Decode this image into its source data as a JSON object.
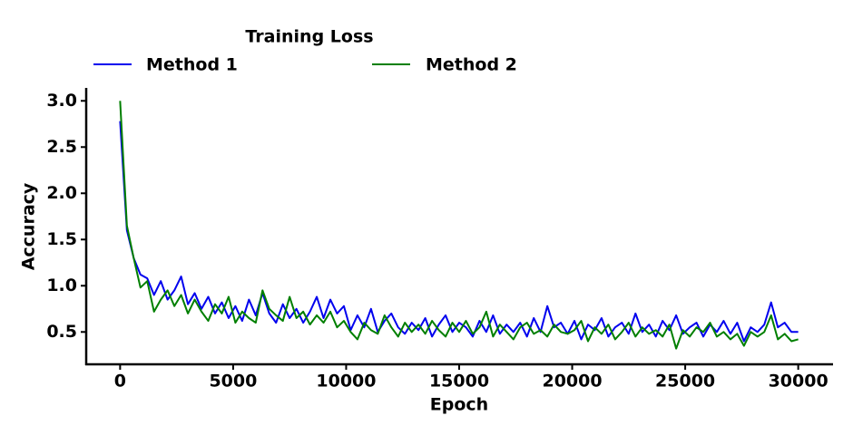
{
  "chart_data": {
    "type": "line",
    "legend_title": "Training Loss",
    "x_label": "Epoch",
    "y_label": "Accuracy",
    "x": [
      0,
      300,
      600,
      900,
      1200,
      1500,
      1800,
      2100,
      2400,
      2700,
      3000,
      3300,
      3600,
      3900,
      4200,
      4500,
      4800,
      5100,
      5400,
      5700,
      6000,
      6300,
      6600,
      6900,
      7200,
      7500,
      7800,
      8100,
      8400,
      8700,
      9000,
      9300,
      9600,
      9900,
      10200,
      10500,
      10800,
      11100,
      11400,
      11700,
      12000,
      12300,
      12600,
      12900,
      13200,
      13500,
      13800,
      14100,
      14400,
      14700,
      15000,
      15300,
      15600,
      15900,
      16200,
      16500,
      16800,
      17100,
      17400,
      17700,
      18000,
      18300,
      18600,
      18900,
      19200,
      19500,
      19800,
      20100,
      20400,
      20700,
      21000,
      21300,
      21600,
      21900,
      22200,
      22500,
      22800,
      23100,
      23400,
      23700,
      24000,
      24300,
      24600,
      24900,
      25200,
      25500,
      25800,
      26100,
      26400,
      26700,
      27000,
      27300,
      27600,
      27900,
      28200,
      28500,
      28800,
      29100,
      29400,
      29700,
      30000
    ],
    "series": [
      {
        "name": "Method 1",
        "color": "#0000ee",
        "values": [
          2.78,
          1.6,
          1.3,
          1.12,
          1.08,
          0.9,
          1.05,
          0.85,
          0.95,
          1.1,
          0.8,
          0.92,
          0.75,
          0.88,
          0.7,
          0.82,
          0.65,
          0.78,
          0.62,
          0.85,
          0.68,
          0.92,
          0.7,
          0.6,
          0.8,
          0.65,
          0.75,
          0.6,
          0.72,
          0.88,
          0.65,
          0.85,
          0.7,
          0.78,
          0.52,
          0.68,
          0.55,
          0.75,
          0.5,
          0.62,
          0.7,
          0.55,
          0.48,
          0.6,
          0.52,
          0.65,
          0.45,
          0.58,
          0.68,
          0.5,
          0.6,
          0.55,
          0.45,
          0.62,
          0.5,
          0.68,
          0.48,
          0.58,
          0.5,
          0.6,
          0.45,
          0.65,
          0.5,
          0.78,
          0.55,
          0.6,
          0.48,
          0.62,
          0.42,
          0.58,
          0.52,
          0.65,
          0.45,
          0.55,
          0.6,
          0.48,
          0.7,
          0.5,
          0.58,
          0.45,
          0.62,
          0.52,
          0.68,
          0.48,
          0.55,
          0.6,
          0.45,
          0.58,
          0.5,
          0.62,
          0.48,
          0.6,
          0.4,
          0.55,
          0.5,
          0.58,
          0.82,
          0.55,
          0.6,
          0.5,
          0.5
        ]
      },
      {
        "name": "Method 2",
        "color": "#007f00",
        "values": [
          3.0,
          1.65,
          1.3,
          0.98,
          1.05,
          0.72,
          0.85,
          0.95,
          0.78,
          0.9,
          0.7,
          0.85,
          0.72,
          0.62,
          0.8,
          0.7,
          0.88,
          0.6,
          0.72,
          0.65,
          0.6,
          0.95,
          0.75,
          0.68,
          0.62,
          0.88,
          0.65,
          0.72,
          0.58,
          0.68,
          0.6,
          0.72,
          0.55,
          0.62,
          0.5,
          0.42,
          0.6,
          0.52,
          0.48,
          0.68,
          0.55,
          0.45,
          0.6,
          0.5,
          0.58,
          0.48,
          0.62,
          0.52,
          0.45,
          0.6,
          0.5,
          0.62,
          0.48,
          0.55,
          0.72,
          0.45,
          0.58,
          0.5,
          0.42,
          0.55,
          0.6,
          0.48,
          0.52,
          0.45,
          0.58,
          0.5,
          0.48,
          0.52,
          0.62,
          0.4,
          0.55,
          0.48,
          0.58,
          0.42,
          0.5,
          0.6,
          0.45,
          0.55,
          0.48,
          0.52,
          0.45,
          0.58,
          0.32,
          0.52,
          0.45,
          0.55,
          0.5,
          0.6,
          0.45,
          0.5,
          0.42,
          0.48,
          0.35,
          0.5,
          0.45,
          0.5,
          0.68,
          0.42,
          0.48,
          0.4,
          0.42
        ]
      }
    ],
    "xlim": [
      -1500,
      31500
    ],
    "ylim": [
      0.15,
      3.14
    ],
    "xticks": [
      0,
      5000,
      10000,
      15000,
      20000,
      25000,
      30000
    ],
    "yticks": [
      0.5,
      {
        "value": 1,
        "label": "1.0"
      },
      1.5,
      {
        "value": 2,
        "label": "2.0"
      },
      2.5,
      {
        "value": 3,
        "label": "3.0"
      }
    ],
    "grid": false
  }
}
